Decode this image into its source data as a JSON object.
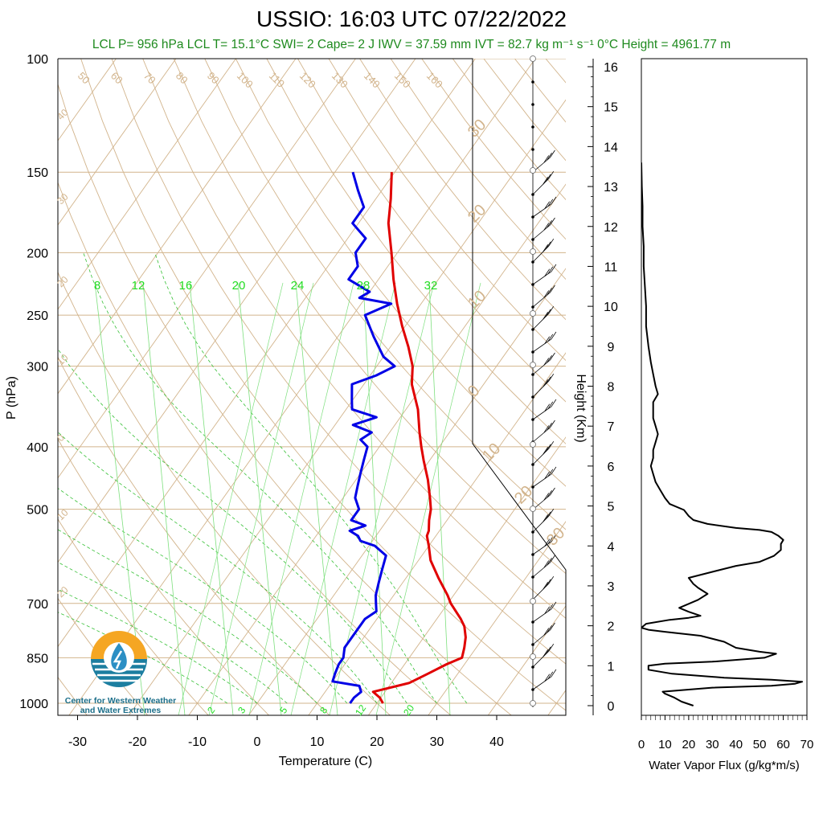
{
  "chart_data": {
    "type": "line",
    "title": "USSIO: 16:03 UTC 07/22/2022",
    "subtitle": "LCL P= 956 hPa  LCL T= 15.1°C  SWI= 2  Cape= 2 J  IWV = 37.59 mm  IVT = 82.7 kg m⁻¹ s⁻¹  0°C Height = 4961.77 m",
    "skewt": {
      "xlabel": "Temperature (C)",
      "ylabel": "P (hPa)",
      "xlim": [
        -33,
        50
      ],
      "xticks": [
        "-30",
        "-20",
        "-10",
        "0",
        "10",
        "20",
        "30",
        "40"
      ],
      "pressure_ticks": [
        "100",
        "150",
        "200",
        "250",
        "300",
        "400",
        "500",
        "700",
        "850",
        "1000"
      ],
      "pressure_range": [
        1000,
        100
      ],
      "temperature": {
        "name": "Temperature",
        "color": "#e00000",
        "p": [
          1000,
          980,
          960,
          930,
          900,
          870,
          850,
          820,
          790,
          760,
          740,
          700,
          680,
          640,
          600,
          570,
          550,
          540,
          520,
          500,
          480,
          450,
          420,
          400,
          380,
          350,
          320,
          300,
          280,
          260,
          240,
          220,
          200,
          180,
          165,
          150
        ],
        "t": [
          21,
          19.8,
          18,
          23,
          25,
          27,
          28.8,
          28,
          27,
          25.5,
          24,
          20.5,
          19,
          15.5,
          12,
          10,
          8.5,
          8.2,
          7,
          6,
          4.5,
          2,
          -1,
          -3,
          -5,
          -8,
          -12,
          -14,
          -17,
          -20.5,
          -24,
          -27.5,
          -31,
          -35,
          -37.5,
          -40.5
        ]
      },
      "dewpoint": {
        "name": "Dewpoint",
        "color": "#0000e6",
        "p": [
          1000,
          980,
          960,
          940,
          925,
          900,
          870,
          850,
          820,
          790,
          760,
          740,
          720,
          700,
          680,
          650,
          620,
          590,
          570,
          560,
          550,
          540,
          530,
          520,
          500,
          480,
          460,
          440,
          420,
          400,
          390,
          380,
          370,
          360,
          350,
          340,
          320,
          310,
          300,
          290,
          270,
          250,
          240,
          235,
          230,
          220,
          210,
          200,
          190,
          180,
          170,
          160,
          150
        ],
        "t": [
          15.5,
          15.5,
          16,
          15,
          10,
          9.5,
          9,
          9,
          8,
          8,
          8,
          8,
          9,
          8,
          7,
          6,
          5,
          4,
          1,
          -2,
          -3,
          -5,
          -3,
          -6,
          -6,
          -8,
          -9,
          -10,
          -11,
          -12,
          -14,
          -13,
          -17,
          -14,
          -19,
          -20,
          -22,
          -19,
          -17,
          -20,
          -24,
          -28,
          -25,
          -31,
          -30,
          -35,
          -35,
          -37,
          -37,
          -41,
          -41,
          -44,
          -47
        ]
      },
      "dry_adiabat_labels": [
        "50",
        "60",
        "70",
        "80",
        "90",
        "100",
        "110",
        "120",
        "130",
        "140",
        "150",
        "160"
      ],
      "isotherm_labels": [
        "40",
        "30",
        "20",
        "10",
        "0",
        "10",
        "20",
        "30",
        "20",
        "10",
        "0",
        "10",
        "20",
        "30"
      ],
      "mixing_ratio_labels_top": [
        "8",
        "12",
        "16",
        "20",
        "24",
        "28",
        "32"
      ],
      "mixing_ratio_labels_bottom": [
        "2",
        "3",
        "5",
        "8",
        "12",
        "20"
      ]
    },
    "height_axis": {
      "ylabel": "Height (Km)",
      "ticks": [
        "0",
        "1",
        "2",
        "3",
        "4",
        "5",
        "6",
        "7",
        "8",
        "9",
        "10",
        "11",
        "12",
        "13",
        "14",
        "15",
        "16"
      ]
    },
    "wvflux": {
      "xlabel": "Water Vapor Flux (g/kg*m/s)",
      "xlim": [
        0,
        70
      ],
      "xticks": [
        "0",
        "10",
        "20",
        "30",
        "40",
        "50",
        "60",
        "70"
      ],
      "ylim_km": [
        0,
        16.5
      ],
      "h": [
        0.0,
        0.1,
        0.2,
        0.3,
        0.35,
        0.45,
        0.5,
        0.55,
        0.6,
        0.65,
        0.7,
        0.8,
        0.9,
        1.0,
        1.05,
        1.1,
        1.2,
        1.3,
        1.35,
        1.45,
        1.6,
        1.75,
        1.85,
        1.9,
        1.95,
        2.05,
        2.15,
        2.2,
        2.25,
        2.35,
        2.45,
        2.55,
        2.65,
        2.8,
        2.95,
        3.05,
        3.2,
        3.35,
        3.5,
        3.6,
        3.75,
        3.9,
        4.05,
        4.15,
        4.25,
        4.35,
        4.4,
        4.45,
        4.55,
        4.65,
        4.75,
        4.9,
        5.05,
        5.2,
        5.4,
        5.6,
        5.8,
        6.0,
        6.2,
        6.4,
        6.6,
        6.8,
        7.0,
        7.2,
        7.4,
        7.6,
        7.8,
        8.0,
        8.3,
        8.6,
        9.0,
        9.5,
        10.0,
        10.5,
        11.0,
        11.5,
        12.0,
        12.5,
        13.0,
        13.6
      ],
      "flux": [
        22,
        17,
        14,
        10,
        9,
        30,
        55,
        65,
        68,
        55,
        35,
        13,
        3,
        3,
        10,
        30,
        52,
        57,
        50,
        40,
        35,
        25,
        10,
        3,
        0,
        2,
        12,
        20,
        25,
        20,
        16,
        20,
        24,
        28,
        24,
        22,
        20,
        30,
        40,
        50,
        56,
        59,
        59,
        60,
        58,
        55,
        50,
        40,
        28,
        22,
        20,
        18,
        12,
        10,
        8,
        6,
        5,
        4,
        5,
        5,
        6,
        7,
        6,
        5,
        5,
        5,
        7,
        6,
        5,
        4,
        3,
        2,
        2,
        1.5,
        1,
        1,
        0.5,
        0.5,
        0.2,
        0
      ]
    },
    "logo": {
      "line1": "Center for Western Weather",
      "line2": "and Water Extremes"
    }
  }
}
